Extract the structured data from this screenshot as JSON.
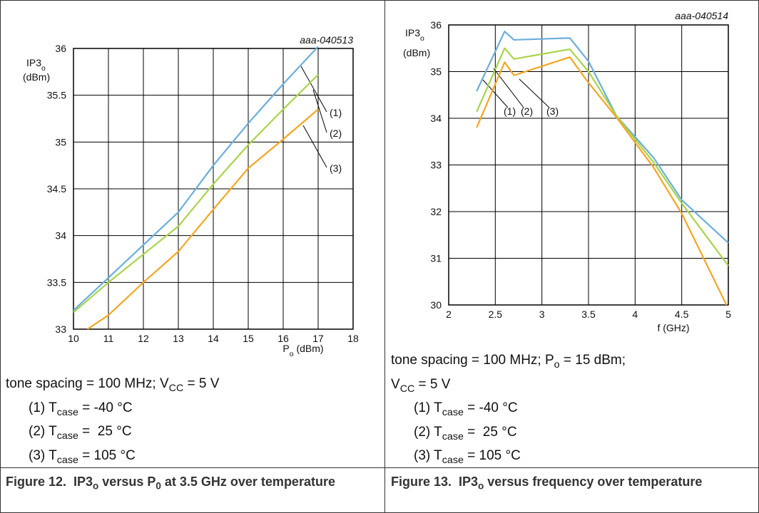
{
  "chart_data": [
    {
      "type": "line",
      "doc_id": "aaa-040513",
      "y_label": [
        [
          "IP3",
          "o"
        ],
        [
          "(dBm)"
        ]
      ],
      "x_label": [
        "P",
        "o",
        " (dBm)"
      ],
      "xlim": [
        10,
        18
      ],
      "xticks": [
        10,
        11,
        12,
        13,
        14,
        15,
        16,
        17,
        18
      ],
      "ylim": [
        33,
        36
      ],
      "yticks": [
        33,
        33.5,
        34,
        34.5,
        35,
        35.5,
        36
      ],
      "grid": true,
      "series": [
        {
          "name": "(1)",
          "color": "#6aaedc",
          "x": [
            10,
            11,
            12,
            13,
            14,
            15,
            16,
            17
          ],
          "values": [
            33.2,
            33.55,
            33.9,
            34.25,
            34.75,
            35.2,
            35.62,
            36.02
          ]
        },
        {
          "name": "(2)",
          "color": "#a9d44a",
          "x": [
            10,
            11,
            12,
            13,
            14,
            15,
            16,
            17
          ],
          "values": [
            33.18,
            33.5,
            33.8,
            34.1,
            34.55,
            34.97,
            35.35,
            35.72
          ]
        },
        {
          "name": "(3)",
          "color": "#f5a623",
          "x": [
            10.4,
            11,
            12,
            13,
            14,
            15,
            16,
            17
          ],
          "values": [
            33,
            33.15,
            33.5,
            33.83,
            34.28,
            34.72,
            35.03,
            35.35
          ]
        }
      ],
      "conditions": [
        [
          "tone spacing = 100 MHz; V",
          "CC",
          " = 5 V"
        ]
      ],
      "legend": [
        [
          "(1) T",
          "case",
          " = -40 °C"
        ],
        [
          "(2) T",
          "case",
          " =  25 °C"
        ],
        [
          "(3) T",
          "case",
          " = 105 °C"
        ]
      ],
      "caption": [
        "Figure 12.  IP3",
        "o",
        " versus P",
        "0",
        " at 3.5 GHz over temperature"
      ]
    },
    {
      "type": "line",
      "doc_id": "aaa-040514",
      "y_label": [
        [
          "IP3",
          "o"
        ],
        [
          "(dBm)"
        ]
      ],
      "x_label": [
        "f (GHz)"
      ],
      "xlim": [
        2,
        5
      ],
      "xticks": [
        2,
        2.5,
        3,
        3.5,
        4,
        4.5,
        5
      ],
      "ylim": [
        30,
        36
      ],
      "yticks": [
        30,
        31,
        32,
        33,
        34,
        35,
        36
      ],
      "grid": true,
      "series": [
        {
          "name": "(1)",
          "color": "#6aaedc",
          "x": [
            2.3,
            2.6,
            2.7,
            3.3,
            3.5,
            3.8,
            4.2,
            4.5,
            5
          ],
          "values": [
            34.58,
            35.86,
            35.68,
            35.72,
            35.22,
            34.05,
            33.15,
            32.25,
            31.33
          ]
        },
        {
          "name": "(2)",
          "color": "#a9d44a",
          "x": [
            2.3,
            2.6,
            2.7,
            3.3,
            3.5,
            3.8,
            4.2,
            4.5,
            5
          ],
          "values": [
            34.14,
            35.5,
            35.27,
            35.48,
            35.0,
            34.05,
            33.05,
            32.18,
            30.84
          ]
        },
        {
          "name": "(3)",
          "color": "#f5a623",
          "x": [
            2.3,
            2.6,
            2.7,
            3.3,
            3.5,
            3.8,
            4.2,
            4.5,
            4.98
          ],
          "values": [
            33.8,
            35.2,
            34.92,
            35.31,
            34.76,
            34.02,
            32.94,
            31.96,
            30
          ]
        }
      ],
      "conditions": [
        [
          "tone spacing = 100 MHz; P",
          "o",
          " = 15 dBm;"
        ],
        [
          "V",
          "CC",
          " = 5 V"
        ]
      ],
      "legend": [
        [
          "(1) T",
          "case",
          " = -40 °C"
        ],
        [
          "(2) T",
          "case",
          " =  25 °C"
        ],
        [
          "(3) T",
          "case",
          " = 105 °C"
        ]
      ],
      "caption": [
        "Figure 13.  IP3",
        "o",
        " versus frequency over temperature"
      ]
    }
  ]
}
